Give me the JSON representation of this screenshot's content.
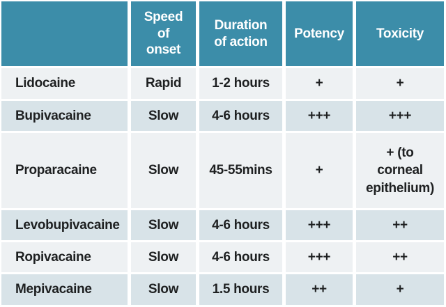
{
  "colors": {
    "header_bg": "#3c8da9",
    "header_text": "#ffffff",
    "row_light": "#eef1f3",
    "row_dark": "#d8e3e8",
    "gridline": "#ffffff",
    "body_text": "#1e2021"
  },
  "chart_data": {
    "type": "table",
    "columns": [
      "",
      "Speed of onset",
      "Duration of action",
      "Potency",
      "Toxicity"
    ],
    "rows": [
      [
        "Lidocaine",
        "Rapid",
        "1-2 hours",
        "+",
        "+"
      ],
      [
        "Bupivacaine",
        "Slow",
        "4-6 hours",
        "+++",
        "+++"
      ],
      [
        "Proparacaine",
        "Slow",
        "45-55mins",
        "+",
        "+ (to corneal epithelium)"
      ],
      [
        "Levobupivacaine",
        "Slow",
        "4-6 hours",
        "+++",
        "++"
      ],
      [
        "Ropivacaine",
        "Slow",
        "4-6 hours",
        "+++",
        "++"
      ],
      [
        "Mepivacaine",
        "Slow",
        "1.5 hours",
        "++",
        "+"
      ]
    ]
  }
}
